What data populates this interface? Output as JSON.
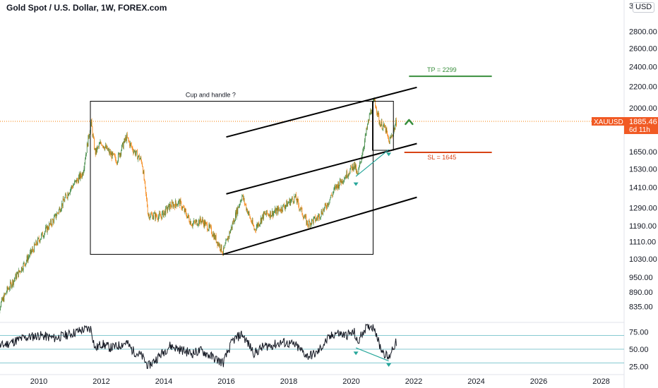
{
  "header": {
    "title": "Gold Spot / U.S. Dollar, 1W, FOREX.com",
    "currency": "USD"
  },
  "colors": {
    "up": "#26a69a",
    "down": "#ef5350",
    "candle_up_fill": "#2e7d32",
    "candle_down_fill": "#f57c00",
    "price_line": "#f57c00",
    "badge": "#f15a24",
    "tp": "#388e3c",
    "sl": "#d84315",
    "channel": "#000000",
    "trendline": "#26a69a",
    "rsi_level": "#5fb8c2"
  },
  "chart_data": [
    {
      "type": "line",
      "name": "price",
      "title": "Gold Spot / U.S. Dollar, 1W, FOREX.com",
      "xlabel": "",
      "ylabel": "",
      "x_ticks": [
        "2010",
        "2012",
        "2014",
        "2016",
        "2018",
        "2020",
        "2022",
        "2024",
        "2026",
        "2028"
      ],
      "y_ticks": [
        "3(",
        "2800.00",
        "2600.00",
        "2400.00",
        "2200.00",
        "2000.00",
        "1650.00",
        "1530.00",
        "1410.00",
        "1290.00",
        "1190.00",
        "1110.00",
        "1030.00",
        "950.00",
        "890.00",
        "835.00"
      ],
      "ylim": [
        800,
        3000
      ],
      "log_scale": true,
      "series": [
        {
          "values_x": [
            2008.6,
            2009.0,
            2009.5,
            2010.0,
            2010.5,
            2011.0,
            2011.4,
            2011.67,
            2011.8,
            2012.0,
            2012.3,
            2012.5,
            2012.8,
            2013.0,
            2013.3,
            2013.5,
            2013.9,
            2014.2,
            2014.5,
            2014.9,
            2015.2,
            2015.5,
            2015.9,
            2016.2,
            2016.5,
            2016.9,
            2017.2,
            2017.5,
            2017.8,
            2018.2,
            2018.6,
            2018.9,
            2019.2,
            2019.5,
            2019.8,
            2020.1,
            2020.2,
            2020.4,
            2020.6,
            2020.75,
            2020.9,
            2021.0,
            2021.1,
            2021.2,
            2021.3,
            2021.45
          ],
          "values_y": [
            800,
            900,
            1000,
            1120,
            1230,
            1400,
            1500,
            1880,
            1640,
            1720,
            1630,
            1590,
            1760,
            1670,
            1580,
            1250,
            1240,
            1300,
            1320,
            1200,
            1220,
            1170,
            1060,
            1200,
            1360,
            1170,
            1250,
            1260,
            1290,
            1350,
            1200,
            1230,
            1300,
            1410,
            1480,
            1560,
            1480,
            1700,
            1950,
            2070,
            1880,
            1850,
            1820,
            1720,
            1770,
            1885
          ]
        }
      ],
      "last_price": {
        "symbol": "XAUUSD",
        "value": "1885.46",
        "countdown": "6d 11h"
      },
      "annotations": [
        {
          "text": "Cup and handle ?"
        },
        {
          "text": "TP = 2299"
        },
        {
          "text": "SL = 1645"
        }
      ],
      "levels": {
        "tp": 2299,
        "sl": 1645
      }
    },
    {
      "type": "line",
      "name": "RSI",
      "y_ticks": [
        "75.00",
        "50.00",
        "25.00"
      ],
      "ylim": [
        20,
        88
      ],
      "levels": [
        70,
        50,
        30
      ],
      "series": [
        {
          "values_x": [
            2008.6,
            2009.0,
            2009.5,
            2010.0,
            2010.5,
            2011.0,
            2011.4,
            2011.67,
            2011.8,
            2012.0,
            2012.3,
            2012.5,
            2012.8,
            2013.0,
            2013.3,
            2013.5,
            2013.9,
            2014.2,
            2014.5,
            2014.9,
            2015.2,
            2015.5,
            2015.9,
            2016.2,
            2016.5,
            2016.9,
            2017.2,
            2017.5,
            2017.8,
            2018.2,
            2018.6,
            2018.9,
            2019.2,
            2019.5,
            2019.8,
            2020.1,
            2020.2,
            2020.4,
            2020.6,
            2020.75,
            2020.9,
            2021.0,
            2021.1,
            2021.2,
            2021.3,
            2021.45
          ],
          "values_y": [
            52,
            58,
            66,
            70,
            66,
            72,
            78,
            80,
            50,
            58,
            52,
            54,
            60,
            48,
            40,
            25,
            42,
            55,
            50,
            44,
            48,
            40,
            30,
            62,
            72,
            44,
            54,
            56,
            60,
            56,
            40,
            44,
            62,
            74,
            70,
            74,
            58,
            78,
            84,
            82,
            56,
            48,
            42,
            36,
            50,
            60
          ]
        }
      ]
    }
  ]
}
